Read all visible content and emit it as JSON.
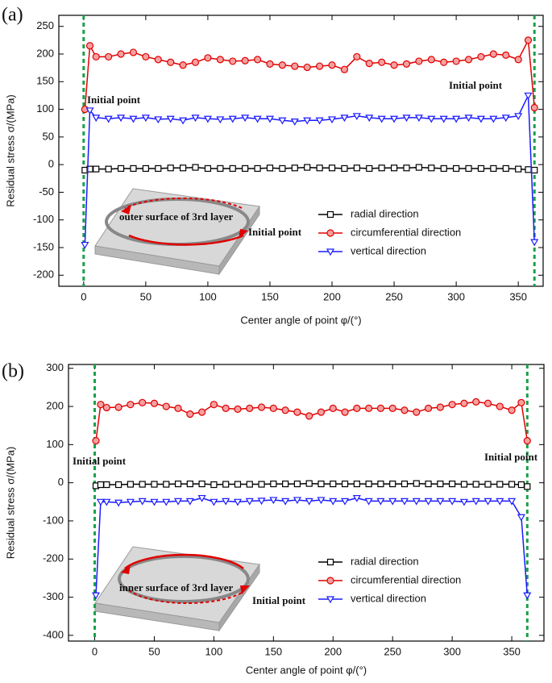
{
  "chart_data": [
    {
      "type": "line",
      "panel_label": "(a)",
      "ylabel": "Residual stress σ/(MPa)",
      "xlabel": "Center angle of point φ/(°)",
      "xlim": [
        -20,
        370
      ],
      "ylim": [
        -220,
        270
      ],
      "xticks": [
        0,
        50,
        100,
        150,
        200,
        250,
        300,
        350
      ],
      "yticks": [
        -200,
        -150,
        -100,
        -50,
        0,
        50,
        100,
        150,
        200,
        250
      ],
      "vlines": [
        0,
        363
      ],
      "vline_color": "#1aa04a",
      "legend": "lower right",
      "annotations": [
        "Initial point",
        "Initial point",
        "outer surface of 3rd layer",
        "Initial point"
      ],
      "x": [
        1,
        5,
        10,
        20,
        30,
        40,
        50,
        60,
        70,
        80,
        90,
        100,
        110,
        120,
        130,
        140,
        150,
        160,
        170,
        180,
        190,
        200,
        210,
        220,
        230,
        240,
        250,
        260,
        270,
        280,
        290,
        300,
        310,
        320,
        330,
        340,
        350,
        358,
        363
      ],
      "series": [
        {
          "name": "radial direction",
          "color": "#000000",
          "marker": "square",
          "values": [
            -10,
            -8,
            -8,
            -8,
            -7,
            -7,
            -7,
            -7,
            -6,
            -6,
            -5,
            -7,
            -7,
            -7,
            -7,
            -7,
            -6,
            -7,
            -6,
            -5,
            -6,
            -6,
            -7,
            -6,
            -7,
            -6,
            -6,
            -6,
            -5,
            -6,
            -7,
            -7,
            -7,
            -7,
            -7,
            -7,
            -8,
            -9,
            -10
          ]
        },
        {
          "name": "circumferential direction",
          "color": "#e00000",
          "marker": "circle",
          "values": [
            100,
            215,
            195,
            195,
            200,
            203,
            195,
            190,
            185,
            180,
            185,
            193,
            190,
            187,
            188,
            190,
            182,
            180,
            178,
            176,
            178,
            180,
            172,
            195,
            183,
            185,
            180,
            182,
            187,
            190,
            185,
            187,
            190,
            195,
            200,
            198,
            190,
            225,
            103
          ]
        },
        {
          "name": "vertical direction",
          "color": "#1a1aff",
          "marker": "triangle",
          "values": [
            -145,
            98,
            85,
            83,
            85,
            83,
            85,
            82,
            83,
            80,
            85,
            83,
            82,
            83,
            85,
            83,
            83,
            80,
            78,
            80,
            80,
            82,
            85,
            88,
            85,
            83,
            83,
            85,
            85,
            83,
            83,
            83,
            85,
            83,
            83,
            85,
            88,
            125,
            -140
          ]
        }
      ]
    },
    {
      "type": "line",
      "panel_label": "(b)",
      "ylabel": "Residual stress σ/(MPa)",
      "xlabel": "Center angle of point φ/(°)",
      "xlim": [
        -22,
        377
      ],
      "ylim": [
        -415,
        310
      ],
      "xticks": [
        0,
        50,
        100,
        150,
        200,
        250,
        300,
        350
      ],
      "yticks": [
        -400,
        -300,
        -200,
        -100,
        0,
        100,
        200,
        300
      ],
      "vlines": [
        0,
        363
      ],
      "vline_color": "#1aa04a",
      "legend": "lower right",
      "annotations": [
        "Initial point",
        "Initial point",
        "inner surface of 3rd layer",
        "Initial point"
      ],
      "x": [
        1,
        5,
        10,
        20,
        30,
        40,
        50,
        60,
        70,
        80,
        90,
        100,
        110,
        120,
        130,
        140,
        150,
        160,
        170,
        180,
        190,
        200,
        210,
        220,
        230,
        240,
        250,
        260,
        270,
        280,
        290,
        300,
        310,
        320,
        330,
        340,
        350,
        358,
        363
      ],
      "series": [
        {
          "name": "radial direction",
          "color": "#000000",
          "marker": "square",
          "values": [
            -8,
            -5,
            -5,
            -5,
            -4,
            -4,
            -4,
            -4,
            -3,
            -3,
            -3,
            -5,
            -4,
            -4,
            -4,
            -4,
            -3,
            -3,
            -3,
            -2,
            -3,
            -3,
            -3,
            -3,
            -3,
            -3,
            -3,
            -3,
            -2,
            -3,
            -3,
            -3,
            -4,
            -4,
            -4,
            -4,
            -4,
            -5,
            -10
          ]
        },
        {
          "name": "circumferential direction",
          "color": "#e00000",
          "marker": "circle",
          "values": [
            110,
            205,
            197,
            198,
            205,
            210,
            208,
            200,
            195,
            180,
            185,
            205,
            195,
            193,
            195,
            198,
            195,
            190,
            185,
            175,
            185,
            195,
            185,
            195,
            195,
            195,
            195,
            190,
            185,
            195,
            198,
            205,
            208,
            212,
            208,
            200,
            190,
            210,
            110
          ]
        },
        {
          "name": "vertical direction",
          "color": "#1a1aff",
          "marker": "triangle",
          "values": [
            -295,
            -50,
            -50,
            -52,
            -50,
            -48,
            -50,
            -50,
            -48,
            -48,
            -40,
            -50,
            -48,
            -50,
            -48,
            -47,
            -45,
            -48,
            -45,
            -48,
            -45,
            -48,
            -48,
            -40,
            -48,
            -48,
            -48,
            -48,
            -48,
            -48,
            -48,
            -48,
            -50,
            -48,
            -48,
            -48,
            -48,
            -90,
            -295
          ]
        }
      ]
    }
  ]
}
